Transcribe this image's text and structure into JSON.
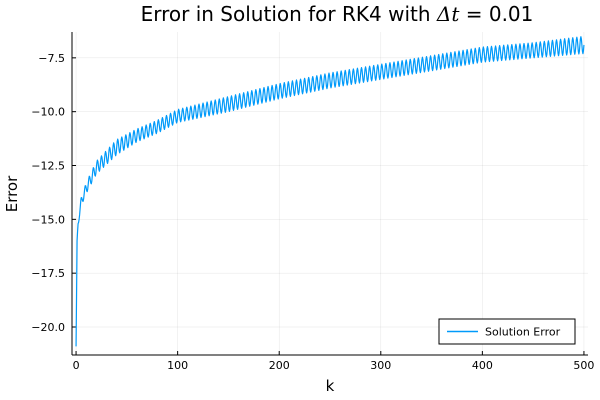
{
  "chart_data": {
    "type": "line",
    "title_prefix": "Error in Solution for RK4 with ",
    "title_math": "Δt",
    "title_suffix": " = 0.01",
    "xlabel": "k",
    "ylabel": "Error",
    "xlim": [
      -4,
      504
    ],
    "ylim": [
      -21.3,
      -6.3
    ],
    "xticks": [
      0,
      100,
      200,
      300,
      400,
      500
    ],
    "xtick_labels": [
      "0",
      "100",
      "200",
      "300",
      "400",
      "500"
    ],
    "yticks": [
      -20.0,
      -17.5,
      -15.0,
      -12.5,
      -10.0,
      -7.5
    ],
    "ytick_labels": [
      "−20.0",
      "−17.5",
      "−15.0",
      "−12.5",
      "−10.0",
      "−7.5"
    ],
    "grid": true,
    "legend_position": "bottom-right",
    "series": [
      {
        "name": "Solution Error",
        "color": "#009AFA",
        "envelope_x": [
          0,
          1,
          2,
          3,
          5,
          10,
          20,
          40,
          60,
          80,
          100,
          150,
          200,
          250,
          300,
          350,
          400,
          450,
          500
        ],
        "upper": [
          -20.9,
          -16.0,
          -15.0,
          -14.6,
          -14.0,
          -13.3,
          -12.3,
          -11.3,
          -10.8,
          -10.4,
          -9.9,
          -9.3,
          -8.7,
          -8.2,
          -7.8,
          -7.4,
          -7.0,
          -6.8,
          -6.5
        ],
        "lower": [
          -20.9,
          -16.3,
          -15.4,
          -15.0,
          -14.4,
          -13.8,
          -12.9,
          -12.0,
          -11.4,
          -11.0,
          -10.5,
          -10.0,
          -9.4,
          -8.9,
          -8.5,
          -8.1,
          -7.7,
          -7.5,
          -7.3
        ],
        "oscillation_period": 4
      }
    ]
  }
}
